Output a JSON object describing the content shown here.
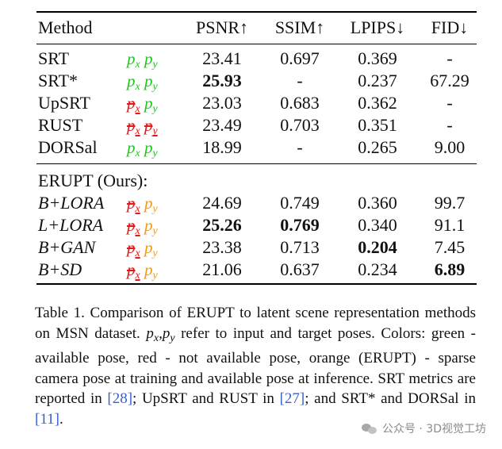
{
  "table": {
    "headers": {
      "method": "Method",
      "psnr": "PSNR↑",
      "ssim": "SSIM↑",
      "lpips": "LPIPS↓",
      "fid": "FID↓"
    },
    "baseline_rows": [
      {
        "method": "SRT",
        "px": "green",
        "py": "green",
        "psnr": "23.41",
        "ssim": "0.697",
        "lpips": "0.369",
        "fid": "-"
      },
      {
        "method": "SRT*",
        "px": "green",
        "py": "green",
        "psnr": "25.93",
        "ssim": "-",
        "lpips": "0.237",
        "fid": "67.29"
      },
      {
        "method": "UpSRT",
        "px": "red",
        "py": "green",
        "psnr": "23.03",
        "ssim": "0.683",
        "lpips": "0.362",
        "fid": "-"
      },
      {
        "method": "RUST",
        "px": "red",
        "py": "red",
        "psnr": "23.49",
        "ssim": "0.703",
        "lpips": "0.351",
        "fid": "-"
      },
      {
        "method": "DORSal",
        "px": "green",
        "py": "green",
        "psnr": "18.99",
        "ssim": "-",
        "lpips": "0.265",
        "fid": "9.00"
      }
    ],
    "section_label": "ERUPT (Ours):",
    "erupt_rows": [
      {
        "method": "B+LORA",
        "px": "red",
        "py": "orange",
        "psnr": "24.69",
        "ssim": "0.749",
        "lpips": "0.360",
        "fid": "99.7"
      },
      {
        "method": "L+LORA",
        "px": "red",
        "py": "orange",
        "psnr": "25.26",
        "ssim": "0.769",
        "lpips": "0.340",
        "fid": "91.1"
      },
      {
        "method": "B+GAN",
        "px": "red",
        "py": "orange",
        "psnr": "23.38",
        "ssim": "0.713",
        "lpips": "0.204",
        "fid": "7.45"
      },
      {
        "method": "B+SD",
        "px": "red",
        "py": "orange",
        "psnr": "21.06",
        "ssim": "0.637",
        "lpips": "0.234",
        "fid": "6.89"
      }
    ],
    "pose_symbols": {
      "px_base": "p",
      "px_sub": "x",
      "py_base": "p",
      "py_sub": "y"
    }
  },
  "caption": {
    "part1": "Table 1.  Comparison of ERUPT to latent scene representation methods on MSN dataset. ",
    "math": "px,py",
    "part2": " refer to input and target poses. Colors: green - available pose, red - not available pose, orange (ERUPT) - sparse camera pose at training and available pose at inference. SRT metrics are reported in ",
    "ref1": "[28]",
    "part3": "; UpSRT and RUST in ",
    "ref2": "[27]",
    "part4": "; and SRT* and DORSal in ",
    "ref3": "[11]",
    "part5": "."
  },
  "watermark": {
    "text": "公众号 · 3D视觉工坊"
  },
  "colors": {
    "green": "#22c422",
    "red": "#e01818",
    "orange": "#f39a1c",
    "ref_blue": "#3a5fd0"
  }
}
